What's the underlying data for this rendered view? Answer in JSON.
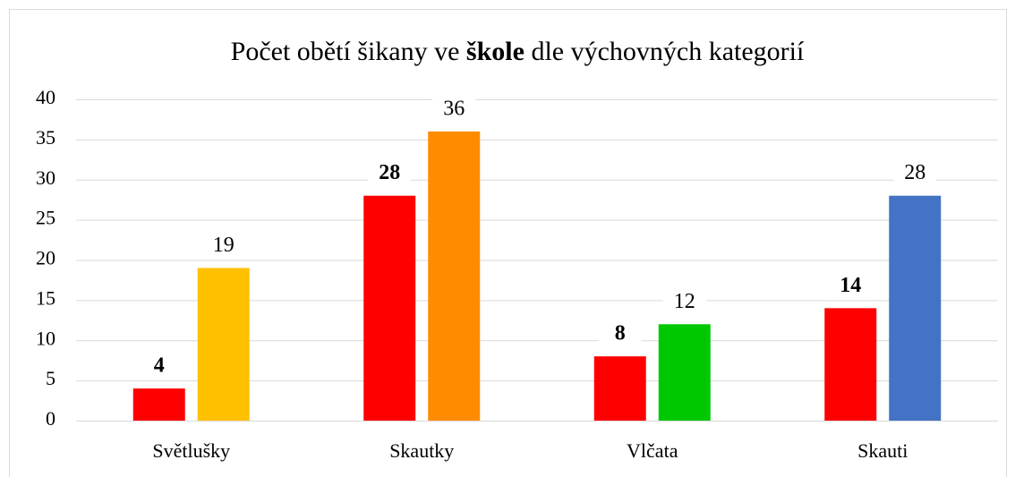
{
  "chart_data": {
    "type": "bar",
    "title_parts": [
      "Počet obětí šikany ve",
      "škole",
      "dle výchovných kategorií"
    ],
    "categories": [
      "Světlušky",
      "Skautky",
      "Vlčata",
      "Skauti"
    ],
    "series": [
      {
        "values": [
          4,
          28,
          8,
          14
        ],
        "color": "#ff0000",
        "label_weight": "bold"
      },
      {
        "values": [
          19,
          36,
          12,
          28
        ],
        "color": [
          "#ffc000",
          "#ff8c00",
          "#00c800",
          "#4472c4"
        ],
        "label_weight": "normal"
      }
    ],
    "ylim": [
      0,
      40
    ],
    "yticks": [
      0,
      5,
      10,
      15,
      20,
      25,
      30,
      35,
      40
    ],
    "grid": true
  }
}
